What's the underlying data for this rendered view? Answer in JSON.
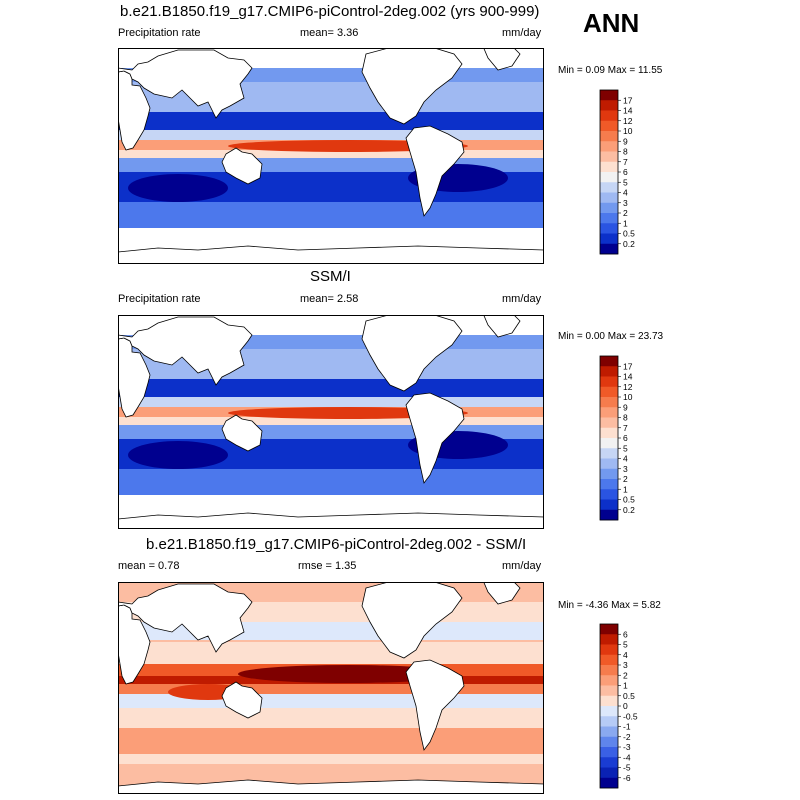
{
  "season": "ANN",
  "panels": [
    {
      "title": "b.e21.B1850.f19_g17.CMIP6-piControl-2deg.002 (yrs 900-999)",
      "left": "Precipitation rate",
      "center": "mean=   3.36",
      "right": "mm/day",
      "minmax": "Min =   0.09 Max =  11.55",
      "colorbar": {
        "labels": [
          "17",
          "14",
          "12",
          "10",
          "9",
          "8",
          "7",
          "6",
          "5",
          "4",
          "3",
          "2",
          "1",
          "0.5",
          "0.2"
        ],
        "colors": [
          "#7f0000",
          "#bf1b00",
          "#e0380f",
          "#f05a28",
          "#f67c4d",
          "#fb9e78",
          "#fcbda2",
          "#fde0d0",
          "#f2f2f2",
          "#c6d6f5",
          "#9fb9f2",
          "#7299ef",
          "#4c78ec",
          "#2a54e2",
          "#0c30c9",
          "#00008f"
        ]
      }
    },
    {
      "title": "SSM/I",
      "left": "Precipitation rate",
      "center": "mean=   2.58",
      "right": "mm/day",
      "minmax": "Min =   0.00 Max =  23.73",
      "colorbar": {
        "labels": [
          "17",
          "14",
          "12",
          "10",
          "9",
          "8",
          "7",
          "6",
          "5",
          "4",
          "3",
          "2",
          "1",
          "0.5",
          "0.2"
        ],
        "colors": [
          "#7f0000",
          "#bf1b00",
          "#e0380f",
          "#f05a28",
          "#f67c4d",
          "#fb9e78",
          "#fcbda2",
          "#fde0d0",
          "#f2f2f2",
          "#c6d6f5",
          "#9fb9f2",
          "#7299ef",
          "#4c78ec",
          "#2a54e2",
          "#0c30c9",
          "#00008f"
        ]
      }
    },
    {
      "title": "b.e21.B1850.f19_g17.CMIP6-piControl-2deg.002 - SSM/I",
      "left": "mean =   0.78",
      "center": "rmse =   1.35",
      "right": "mm/day",
      "minmax": "Min =  -4.36 Max =   5.82",
      "colorbar": {
        "labels": [
          "6",
          "5",
          "4",
          "3",
          "2",
          "1",
          "0.5",
          "0",
          "-0.5",
          "-1",
          "-2",
          "-3",
          "-4",
          "-5",
          "-6"
        ],
        "colors": [
          "#7f0000",
          "#bf1b00",
          "#e0380f",
          "#f05a28",
          "#f67c4d",
          "#fb9e78",
          "#fcbda2",
          "#fde0d0",
          "#dde8fb",
          "#b6cbf6",
          "#8aa9f0",
          "#5f85ec",
          "#3a60e5",
          "#1a3cd2",
          "#0a22b4",
          "#00008f"
        ]
      }
    }
  ]
}
